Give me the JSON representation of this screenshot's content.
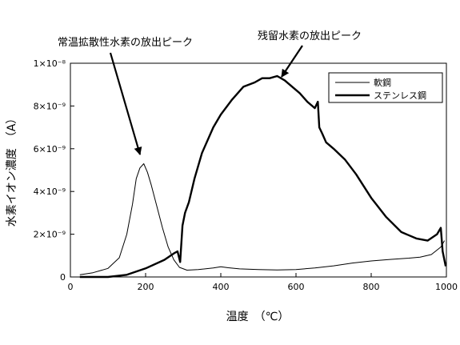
{
  "chart_data": {
    "type": "line",
    "title": "",
    "xlabel": "温度　（℃）",
    "ylabel": "水素イオン濃度　（A）",
    "xlim": [
      0,
      1000
    ],
    "ylim": [
      0,
      1e-08
    ],
    "x_ticks": [
      0,
      200,
      400,
      600,
      800,
      1000
    ],
    "y_ticks": [
      0,
      2e-09,
      4e-09,
      6e-09,
      8e-09,
      1e-08
    ],
    "x_tick_labels": [
      "0",
      "200",
      "400",
      "600",
      "800",
      "1000"
    ],
    "y_tick_labels": [
      "0",
      "2×10⁻⁹",
      "4×10⁻⁹",
      "6×10⁻⁹",
      "8×10⁻⁹",
      "1×10⁻⁸"
    ],
    "grid": false,
    "legend_position": "top-right",
    "series": [
      {
        "name": "軟鋼",
        "style": "thin",
        "x": [
          25,
          60,
          100,
          130,
          150,
          165,
          175,
          185,
          195,
          205,
          215,
          230,
          245,
          260,
          275,
          290,
          310,
          340,
          380,
          400,
          420,
          450,
          500,
          550,
          600,
          650,
          700,
          750,
          800,
          850,
          900,
          930,
          960,
          985,
          995
        ],
        "y": [
          1e-10,
          2e-10,
          4e-10,
          9e-10,
          2e-09,
          3.4e-09,
          4.6e-09,
          5.1e-09,
          5.3e-09,
          4.9e-09,
          4.3e-09,
          3.3e-09,
          2.3e-09,
          1.4e-09,
          8e-10,
          4.5e-10,
          3.2e-10,
          3.5e-10,
          4.2e-10,
          4.8e-10,
          4.3e-10,
          3.8e-10,
          3.5e-10,
          3.3e-10,
          3.5e-10,
          4.2e-10,
          5.2e-10,
          6.5e-10,
          7.5e-10,
          8.2e-10,
          8.8e-10,
          9.3e-10,
          1.05e-09,
          1.4e-09,
          1.7e-09
        ]
      },
      {
        "name": "ステンレス鋼",
        "style": "thick",
        "x": [
          25,
          100,
          150,
          200,
          250,
          275,
          285,
          292,
          298,
          305,
          315,
          330,
          350,
          380,
          400,
          430,
          460,
          490,
          510,
          530,
          550,
          570,
          590,
          610,
          630,
          650,
          658,
          662,
          670,
          680,
          700,
          730,
          760,
          800,
          840,
          880,
          920,
          950,
          975,
          985,
          990,
          998
        ],
        "y": [
          0,
          0,
          1e-10,
          4e-10,
          8e-10,
          1.1e-09,
          1.2e-09,
          7e-10,
          2.4e-09,
          3e-09,
          3.5e-09,
          4.6e-09,
          5.8e-09,
          7e-09,
          7.6e-09,
          8.3e-09,
          8.9e-09,
          9.1e-09,
          9.3e-09,
          9.3e-09,
          9.4e-09,
          9.2e-09,
          8.9e-09,
          8.6e-09,
          8.2e-09,
          7.9e-09,
          8.2e-09,
          7e-09,
          6.7e-09,
          6.3e-09,
          6e-09,
          5.5e-09,
          4.8e-09,
          3.7e-09,
          2.8e-09,
          2.1e-09,
          1.8e-09,
          1.7e-09,
          2e-09,
          2.3e-09,
          1.2e-09,
          5e-10
        ]
      }
    ],
    "annotations": [
      {
        "text": "常温拡散性水素の放出ピーク",
        "x": 200,
        "y": 5.5e-09
      },
      {
        "text": "残留水素の放出ピーク",
        "x": 545,
        "y": 9.5e-09
      }
    ]
  }
}
